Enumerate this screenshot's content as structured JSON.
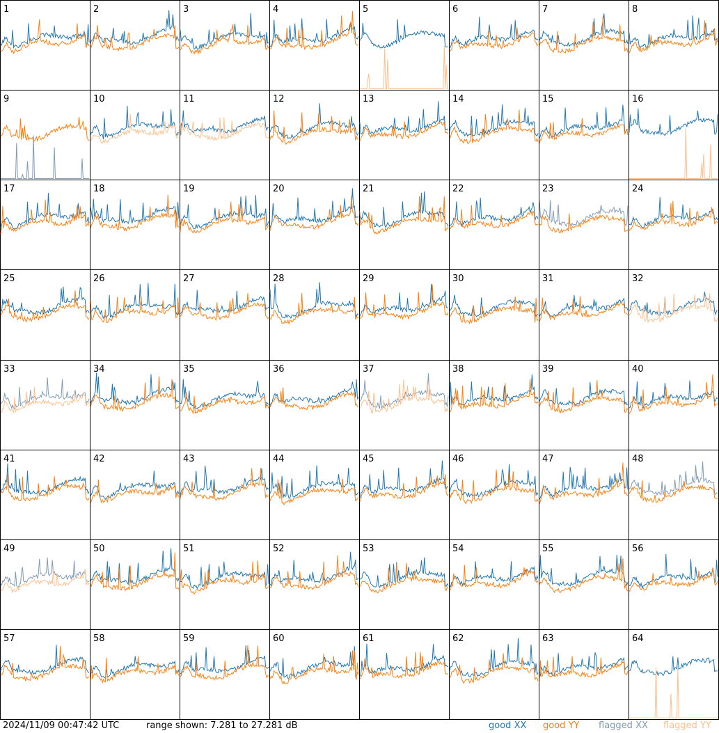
{
  "chart_data": {
    "type": "line",
    "layout": "small-multiples grid 8x8",
    "panels": [
      "1",
      "2",
      "3",
      "4",
      "5",
      "6",
      "7",
      "8",
      "9",
      "10",
      "11",
      "12",
      "13",
      "14",
      "15",
      "16",
      "17",
      "18",
      "19",
      "20",
      "21",
      "22",
      "23",
      "24",
      "25",
      "26",
      "27",
      "28",
      "29",
      "30",
      "31",
      "32",
      "33",
      "34",
      "35",
      "36",
      "37",
      "38",
      "39",
      "40",
      "41",
      "42",
      "43",
      "44",
      "45",
      "46",
      "47",
      "48",
      "49",
      "50",
      "51",
      "52",
      "53",
      "54",
      "55",
      "56",
      "57",
      "58",
      "59",
      "60",
      "61",
      "62",
      "63",
      "64"
    ],
    "ylim_db": [
      7.281,
      27.281
    ],
    "series": [
      {
        "name": "good XX",
        "color": "#1f77b4"
      },
      {
        "name": "good YY",
        "color": "#ff7f0e"
      },
      {
        "name": "flagged XX",
        "color": "#7f9bb5"
      },
      {
        "name": "flagged YY",
        "color": "#ffbf8c"
      }
    ],
    "flagged": {
      "9": {
        "xx": true,
        "yy": false,
        "xx_mode": "spikes"
      },
      "10": {
        "xx": false,
        "yy": true
      },
      "11": {
        "xx": false,
        "yy": true
      },
      "23": {
        "xx": true,
        "yy": false,
        "xx_mode": "noisy"
      },
      "32": {
        "xx": false,
        "yy": true
      },
      "33": {
        "xx": true,
        "yy": true
      },
      "37": {
        "xx": true,
        "yy": true
      },
      "48": {
        "xx": true,
        "yy": false
      },
      "49": {
        "xx": true,
        "yy": true
      },
      "5": {
        "xx": false,
        "yy": true,
        "yy_mode": "spikes"
      },
      "16": {
        "xx": false,
        "yy": true,
        "yy_mode": "spikes"
      },
      "64": {
        "xx": false,
        "yy": true,
        "yy_mode": "spikes"
      }
    }
  },
  "footer": {
    "timestamp": "2024/11/09 00:47:42 UTC",
    "range_text": "range shown: 7.281 to 27.281 dB",
    "legend": [
      {
        "prefix": "good",
        "pol": "XX",
        "color": "#1f77b4"
      },
      {
        "prefix": "good",
        "pol": "YY",
        "color": "#ff7f0e"
      },
      {
        "prefix": "flagged",
        "pol": "XX",
        "color": "#7f9bb5"
      },
      {
        "prefix": "flagged",
        "pol": "YY",
        "color": "#ffbf8c"
      }
    ]
  }
}
